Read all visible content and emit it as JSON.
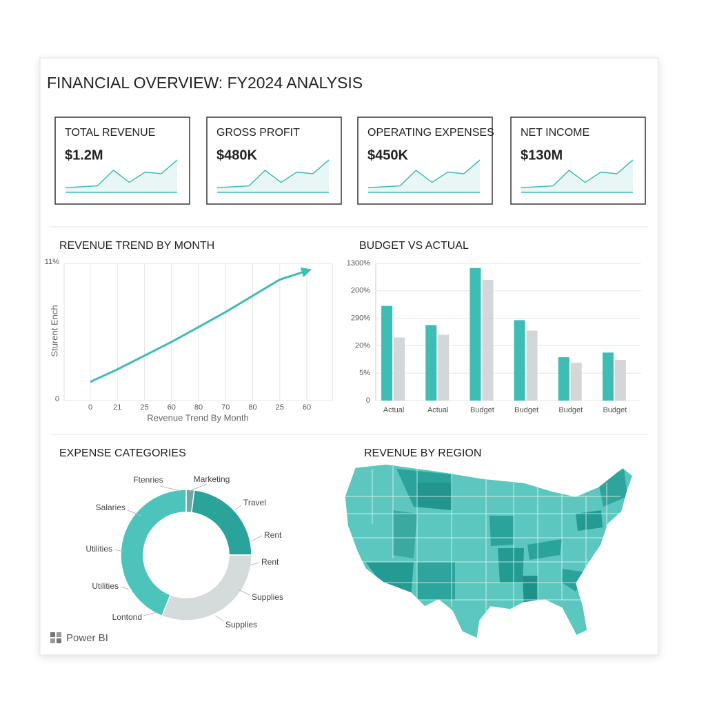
{
  "header": {
    "title": "FINANCIAL OVERVIEW: FY2024 ANALYSIS"
  },
  "kpis": [
    {
      "label": "TOTAL REVENUE",
      "value": "$1.2M",
      "trend": [
        0.2,
        0.22,
        0.25,
        0.7,
        0.35,
        0.65,
        0.6,
        1.0
      ]
    },
    {
      "label": "GROSS PROFIT",
      "value": "$480K",
      "trend": [
        0.2,
        0.22,
        0.25,
        0.7,
        0.35,
        0.65,
        0.6,
        1.0
      ]
    },
    {
      "label": "OPERATING EXPENSES",
      "value": "$450K",
      "trend": [
        0.2,
        0.22,
        0.25,
        0.7,
        0.35,
        0.65,
        0.6,
        1.0
      ]
    },
    {
      "label": "NET INCOME",
      "value": "$130M",
      "trend": [
        0.2,
        0.22,
        0.25,
        0.7,
        0.35,
        0.65,
        0.6,
        1.0
      ]
    }
  ],
  "chart_data": [
    {
      "type": "line",
      "title": "REVENUE TREND BY MONTH",
      "x_label": "Revenue Trend By Month",
      "y_label": "Sturent Ench",
      "categories": [
        "0",
        "21",
        "25",
        "60",
        "80",
        "70",
        "80",
        "25",
        "60"
      ],
      "values": [
        1.5,
        2.5,
        3.6,
        4.7,
        5.9,
        7.1,
        8.4,
        9.7,
        10.4
      ],
      "color": "#3dbdb3",
      "ylim": [
        0,
        11
      ],
      "yticks": [
        0,
        {
          "value": 11,
          "label": "11%"
        }
      ],
      "grid": true
    },
    {
      "type": "bar",
      "title": "BUDGET VS ACTUAL",
      "categories": [
        "Actual",
        "Actual",
        "Budget",
        "Budget",
        "Budget",
        "Budget"
      ],
      "series": [
        {
          "color": "#3dbdb3",
          "values": [
            3.45,
            2.75,
            4.83,
            2.93,
            1.58,
            1.75
          ]
        },
        {
          "color": "#d3d7d9",
          "values": [
            2.3,
            2.4,
            4.4,
            2.55,
            1.38,
            1.48
          ]
        }
      ],
      "ylim": [
        0,
        5
      ],
      "yticks": [
        0,
        {
          "value": 1,
          "label": "5%"
        },
        {
          "value": 2,
          "label": "20%"
        },
        {
          "value": 3,
          "label": "290%"
        },
        {
          "value": 4,
          "label": "200%"
        },
        {
          "value": 5,
          "label": "1300%"
        }
      ],
      "grid": true
    },
    {
      "type": "pie",
      "title": "EXPENSE CATEGORIES",
      "donut": true,
      "values": [
        2,
        23,
        31,
        44
      ],
      "colors": [
        "#6fa8a4",
        "#2aa39b",
        "#d5dadb",
        "#4cc3bb"
      ],
      "annotations": [
        "Ftenries",
        "Marketing",
        "Travel",
        "Rent",
        "Rent",
        "Supplies",
        "Supplies",
        "Lontond",
        "Utilities",
        "Utilities",
        "Salaries"
      ]
    },
    {
      "type": "map",
      "title": "REVENUE BY REGION"
    }
  ],
  "footer": {
    "brand": "Power BI"
  }
}
